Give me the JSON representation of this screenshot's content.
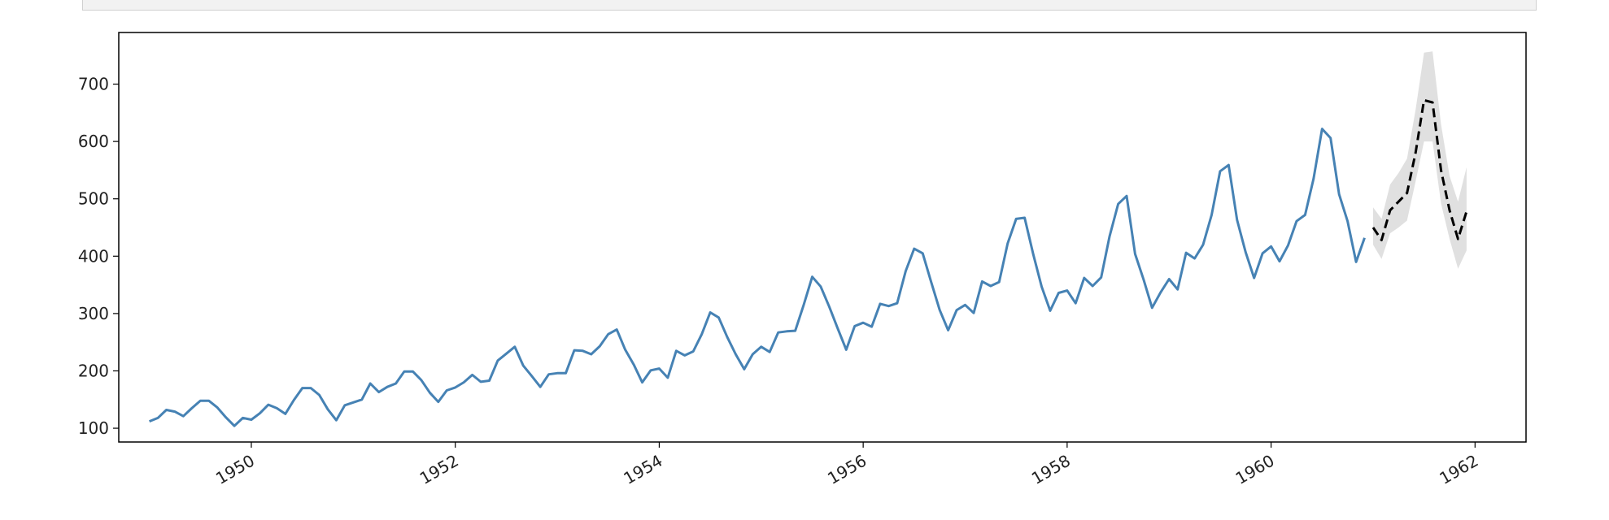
{
  "chart_data": {
    "type": "line",
    "title": "",
    "xlabel": "",
    "ylabel": "",
    "xlim": [
      1948.7,
      1962.5
    ],
    "ylim": [
      76,
      790
    ],
    "x_ticks": [
      1950,
      1952,
      1954,
      1956,
      1958,
      1960,
      1962
    ],
    "x_tick_labels": [
      "1950",
      "1952",
      "1954",
      "1956",
      "1958",
      "1960",
      "1962"
    ],
    "y_ticks": [
      100,
      200,
      300,
      400,
      500,
      600,
      700
    ],
    "y_tick_labels": [
      "100",
      "200",
      "300",
      "400",
      "500",
      "600",
      "700"
    ],
    "grid": false,
    "legend": "none",
    "series": [
      {
        "style": "solid",
        "color": "#4682b4",
        "start": "1949-01",
        "frequency": "monthly",
        "values": [
          112,
          118,
          132,
          129,
          121,
          135,
          148,
          148,
          136,
          119,
          104,
          118,
          115,
          126,
          141,
          135,
          125,
          149,
          170,
          170,
          158,
          133,
          114,
          140,
          145,
          150,
          178,
          163,
          172,
          178,
          199,
          199,
          184,
          162,
          146,
          166,
          171,
          180,
          193,
          181,
          183,
          218,
          230,
          242,
          209,
          191,
          172,
          194,
          196,
          196,
          236,
          235,
          229,
          243,
          264,
          272,
          237,
          211,
          180,
          201,
          204,
          188,
          235,
          227,
          234,
          264,
          302,
          293,
          259,
          229,
          203,
          229,
          242,
          233,
          267,
          269,
          270,
          315,
          364,
          347,
          312,
          274,
          237,
          278,
          284,
          277,
          317,
          313,
          318,
          374,
          413,
          405,
          355,
          306,
          271,
          306,
          315,
          301,
          356,
          348,
          355,
          422,
          465,
          467,
          404,
          347,
          305,
          336,
          340,
          318,
          362,
          348,
          363,
          435,
          491,
          505,
          404,
          359,
          310,
          337,
          360,
          342,
          406,
          396,
          420,
          472,
          548,
          559,
          463,
          407,
          362,
          405,
          417,
          391,
          419,
          461,
          472,
          535,
          622,
          606,
          508,
          461,
          390,
          432
        ]
      },
      {
        "style": "dashed",
        "color": "#000000",
        "start": "1961-01",
        "frequency": "monthly",
        "values": [
          450,
          428,
          480,
          495,
          510,
          580,
          672,
          668,
          550,
          480,
          430,
          478
        ],
        "interval_lower": [
          420,
          395,
          440,
          450,
          462,
          530,
          600,
          600,
          492,
          430,
          378,
          410
        ],
        "interval_upper": [
          485,
          465,
          525,
          545,
          570,
          655,
          755,
          757,
          630,
          540,
          495,
          555
        ],
        "interval_color": "#d3d3d3"
      }
    ]
  }
}
